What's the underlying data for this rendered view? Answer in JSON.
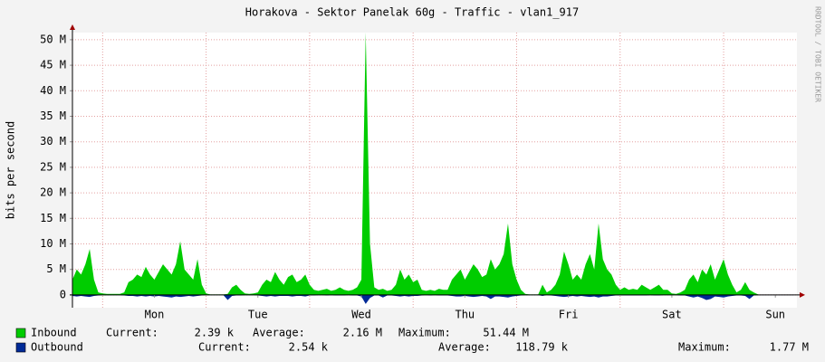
{
  "chart_data": {
    "type": "area",
    "title": "Horakova - Sektor Panelak 60g - Traffic - vlan1_917",
    "y_label": "bits per second",
    "side_text": "RRDTOOL / TOBI OETIKER",
    "x": [
      17,
      18,
      19,
      20,
      21,
      22,
      23,
      24,
      25,
      26,
      27,
      28,
      29,
      30,
      31,
      32,
      33,
      34,
      35,
      36,
      37,
      38,
      39,
      40,
      41,
      42,
      43,
      44,
      45,
      46,
      47,
      48,
      49,
      50,
      51,
      52,
      53,
      54,
      55,
      56,
      57,
      58,
      59,
      60,
      61,
      62,
      63,
      64,
      65,
      66,
      67,
      68,
      69,
      70,
      71,
      72,
      73,
      74,
      75,
      76,
      77,
      78,
      79,
      80,
      81,
      82,
      83,
      84,
      85,
      86,
      87,
      88,
      89,
      90,
      91,
      92,
      93,
      94,
      95,
      96,
      97,
      98,
      99,
      100,
      101,
      102,
      103,
      104,
      105,
      106,
      107,
      108,
      109,
      110,
      111,
      112,
      113,
      114,
      115,
      116,
      117,
      118,
      119,
      120,
      121,
      122,
      123,
      124,
      125,
      126,
      127,
      128,
      129,
      130,
      131,
      132,
      133,
      134,
      135,
      136,
      137,
      138,
      139,
      140,
      141,
      142,
      143,
      144,
      145,
      146,
      147,
      148,
      149,
      150,
      151,
      152,
      153,
      154,
      155,
      156,
      157,
      158,
      159,
      160,
      161,
      162,
      163,
      164,
      165,
      166,
      167,
      168,
      169,
      170,
      171,
      172,
      173,
      174,
      175,
      176,
      177,
      178,
      179,
      180,
      181,
      182,
      183,
      184,
      185
    ],
    "xlim": [
      17,
      185
    ],
    "xticks": [
      {
        "value": 36,
        "label": "Mon"
      },
      {
        "value": 60,
        "label": "Tue"
      },
      {
        "value": 84,
        "label": "Wed"
      },
      {
        "value": 108,
        "label": "Thu"
      },
      {
        "value": 132,
        "label": "Fri"
      },
      {
        "value": 156,
        "label": "Sat"
      },
      {
        "value": 180,
        "label": "Sun"
      }
    ],
    "xgrid": [
      24,
      48,
      72,
      96,
      120,
      144,
      168
    ],
    "ylim": [
      -2.5,
      51.4
    ],
    "yticks": [
      {
        "value": 0,
        "label": "0"
      },
      {
        "value": 5,
        "label": "5 M"
      },
      {
        "value": 10,
        "label": "10 M"
      },
      {
        "value": 15,
        "label": "15 M"
      },
      {
        "value": 20,
        "label": "20 M"
      },
      {
        "value": 25,
        "label": "25 M"
      },
      {
        "value": 30,
        "label": "30 M"
      },
      {
        "value": 35,
        "label": "35 M"
      },
      {
        "value": 40,
        "label": "40 M"
      },
      {
        "value": 45,
        "label": "45 M"
      },
      {
        "value": 50,
        "label": "50 M"
      }
    ],
    "grid": true,
    "series": [
      {
        "name": "Inbound",
        "color": "#00cc00",
        "values": [
          3,
          5,
          4,
          6,
          9,
          3,
          0.5,
          0.3,
          0.2,
          0.2,
          0.2,
          0.2,
          0.5,
          2.5,
          3,
          4,
          3.5,
          5.5,
          4,
          3,
          4.5,
          6,
          5,
          4,
          6,
          10.5,
          5,
          4,
          3,
          7,
          2,
          0.3,
          0.1,
          0.1,
          0.1,
          0.1,
          0.2,
          1.5,
          2,
          1,
          0.3,
          0.2,
          0.3,
          0.5,
          2,
          3,
          2.5,
          4.5,
          3,
          2,
          3.5,
          4,
          2.5,
          3,
          4,
          2,
          1,
          0.8,
          1,
          1.2,
          0.8,
          1,
          1.5,
          1,
          0.8,
          1,
          1.5,
          3,
          51.44,
          10,
          1.5,
          1,
          1.2,
          0.8,
          1,
          2,
          5,
          3,
          4,
          2.5,
          3,
          1,
          0.8,
          1,
          0.8,
          1.2,
          1,
          1,
          3,
          4,
          5,
          3,
          4.5,
          6,
          5,
          3.5,
          4,
          7,
          5,
          6,
          8,
          14,
          6,
          3,
          1,
          0.2,
          0.1,
          0.1,
          0.1,
          2,
          0.5,
          1,
          2,
          4,
          8.5,
          6,
          3,
          4,
          3,
          6,
          8,
          5,
          14,
          7,
          5,
          4,
          2,
          1,
          1.5,
          1,
          1.2,
          1,
          2,
          1.5,
          1,
          1.5,
          2,
          1,
          1,
          0.3,
          0.2,
          0.5,
          1,
          3,
          4,
          2.5,
          5,
          4,
          6,
          3,
          5,
          7,
          4,
          2,
          0.5,
          1,
          2.5,
          1,
          0.5,
          0.1,
          0,
          0,
          0,
          0,
          0,
          0,
          0,
          0,
          0.00239
        ],
        "stats": [
          {
            "label": "Current:",
            "value": "2.39 k"
          },
          {
            "label": "Average:",
            "value": "2.16 M"
          },
          {
            "label": "Maximum:",
            "value": "51.44 M"
          }
        ]
      },
      {
        "name": "Outbound",
        "color": "#002a97",
        "values": [
          -0.2,
          -0.3,
          -0.2,
          -0.3,
          -0.4,
          -0.2,
          -0.1,
          -0.05,
          -0.05,
          -0.05,
          -0.05,
          -0.05,
          -0.1,
          -0.2,
          -0.2,
          -0.3,
          -0.2,
          -0.3,
          -0.2,
          -0.3,
          -0.2,
          -0.3,
          -0.4,
          -0.5,
          -0.3,
          -0.4,
          -0.3,
          -0.2,
          -0.3,
          -0.2,
          -0.1,
          -0.05,
          -0.05,
          -0.05,
          -0.05,
          -0.05,
          -1,
          -0.2,
          -0.1,
          -0.1,
          -0.05,
          -0.05,
          -0.05,
          -0.1,
          -0.2,
          -0.3,
          -0.2,
          -0.3,
          -0.2,
          -0.2,
          -0.2,
          -0.3,
          -0.2,
          -0.2,
          -0.3,
          -0.1,
          -0.1,
          -0.05,
          -0.05,
          -0.1,
          -0.05,
          -0.1,
          -0.1,
          -0.1,
          -0.05,
          -0.1,
          -0.1,
          -0.3,
          -1.77,
          -0.6,
          -0.1,
          -0.1,
          -0.5,
          -0.1,
          -0.1,
          -0.2,
          -0.3,
          -0.2,
          -0.3,
          -0.2,
          -0.2,
          -0.1,
          -0.05,
          -0.1,
          -0.05,
          -0.1,
          -0.1,
          -0.1,
          -0.2,
          -0.3,
          -0.3,
          -0.2,
          -0.3,
          -0.4,
          -0.3,
          -0.2,
          -0.3,
          -0.8,
          -0.3,
          -0.3,
          -0.4,
          -0.5,
          -0.3,
          -0.2,
          -0.1,
          -0.05,
          -0.05,
          -0.05,
          -0.05,
          -0.2,
          -0.05,
          -0.1,
          -0.2,
          -0.3,
          -0.4,
          -0.3,
          -0.2,
          -0.3,
          -0.2,
          -0.3,
          -0.4,
          -0.3,
          -0.5,
          -0.3,
          -0.3,
          -0.2,
          -0.1,
          -0.1,
          -0.1,
          -0.1,
          -0.1,
          -0.1,
          -0.1,
          -0.1,
          -0.05,
          -0.1,
          -0.1,
          -0.05,
          -0.05,
          -0.05,
          -0.05,
          -0.1,
          -0.1,
          -0.3,
          -0.5,
          -0.3,
          -0.6,
          -1,
          -0.8,
          -0.3,
          -0.4,
          -0.5,
          -0.3,
          -0.2,
          -0.1,
          -0.1,
          -0.2,
          -0.8,
          -0.1,
          -0.05,
          -0.05,
          -0.05,
          -0.05,
          -0.05,
          -0.05,
          -0.05,
          -0.05,
          -0.05,
          -0.00254
        ],
        "stats": [
          {
            "label": "Current:",
            "value": "2.54 k"
          },
          {
            "label": "Average:",
            "value": "118.79 k"
          },
          {
            "label": "Maximum:",
            "value": "1.77 M"
          }
        ]
      }
    ]
  }
}
